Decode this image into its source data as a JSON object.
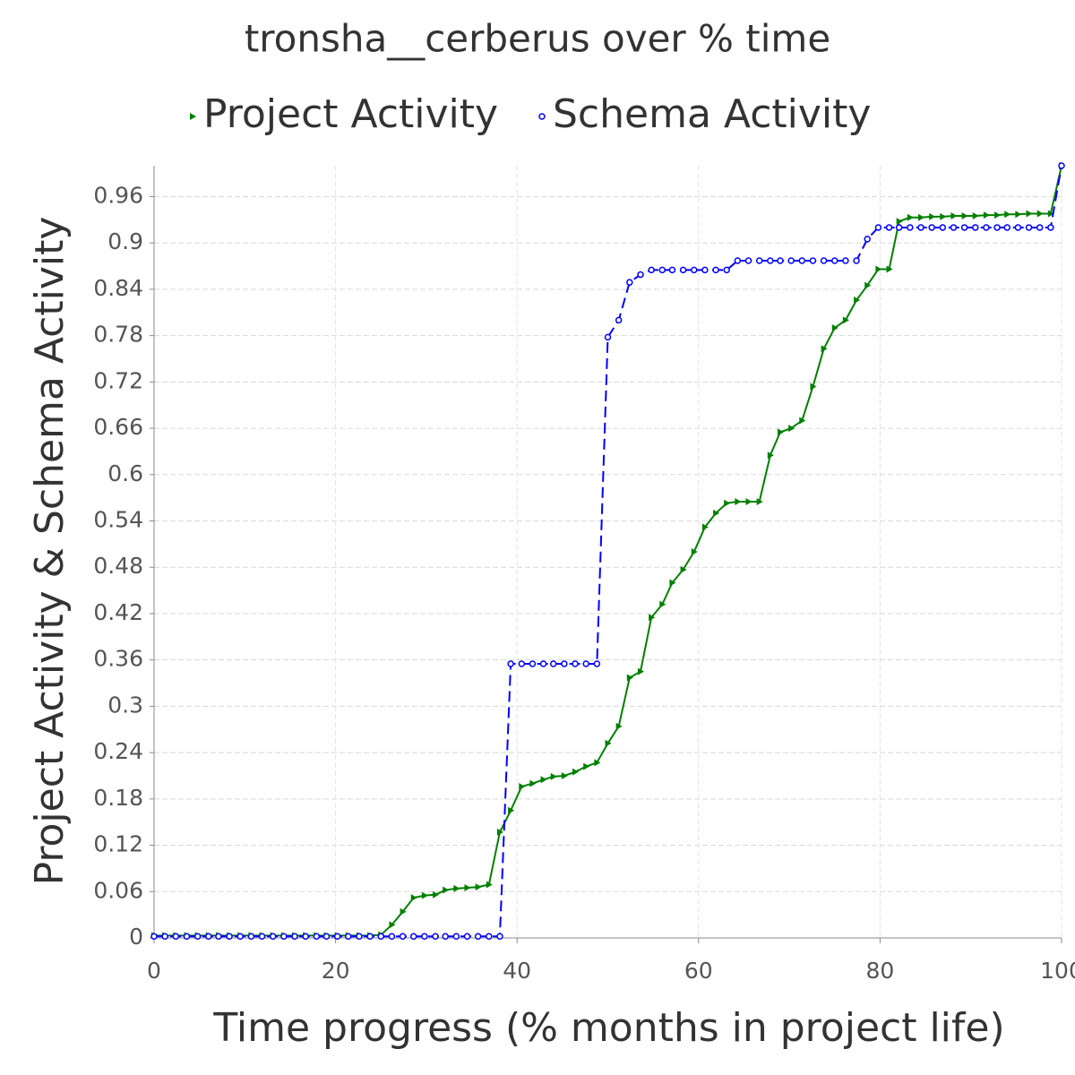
{
  "chart_data": {
    "type": "line",
    "title": "tronsha__cerberus over % time",
    "x_label": "Time progress (% months in project life)",
    "y_label": "Project Activity & Schema Activity",
    "xlim": [
      0,
      100
    ],
    "xticks": [
      0,
      20,
      40,
      60,
      80,
      100
    ],
    "ylim": [
      0,
      1
    ],
    "yticks": [
      0,
      0.06,
      0.12,
      0.18,
      0.24,
      0.3,
      0.36,
      0.42,
      0.48,
      0.54,
      0.6,
      0.66,
      0.72,
      0.78,
      0.84,
      0.9,
      0.96
    ],
    "grid": true,
    "legend": "top",
    "x": [
      0,
      1.2,
      2.4,
      3.6,
      4.8,
      6.0,
      7.1,
      8.3,
      9.5,
      10.7,
      11.9,
      13.1,
      14.3,
      15.5,
      16.7,
      17.9,
      19.0,
      20.2,
      21.4,
      22.6,
      23.8,
      25.0,
      26.2,
      27.4,
      28.6,
      29.8,
      31.0,
      32.1,
      33.3,
      34.5,
      35.7,
      36.9,
      38.1,
      39.3,
      40.5,
      41.7,
      42.9,
      44.0,
      45.2,
      46.4,
      47.6,
      48.8,
      50.0,
      51.2,
      52.4,
      53.6,
      54.8,
      56.0,
      57.1,
      58.3,
      59.5,
      60.7,
      61.9,
      63.1,
      64.3,
      65.5,
      66.7,
      67.9,
      69.0,
      70.2,
      71.4,
      72.6,
      73.8,
      75.0,
      76.2,
      77.4,
      78.6,
      79.8,
      81.0,
      82.1,
      83.3,
      84.5,
      85.7,
      86.9,
      88.1,
      89.3,
      90.5,
      91.7,
      92.9,
      94.0,
      95.2,
      96.4,
      97.6,
      98.8,
      100
    ],
    "series": [
      {
        "name": "Project Activity",
        "color": "#008000",
        "marker": "triangle",
        "dashed": false,
        "values": [
          0.003,
          0.003,
          0.003,
          0.003,
          0.003,
          0.003,
          0.003,
          0.003,
          0.003,
          0.003,
          0.003,
          0.003,
          0.003,
          0.003,
          0.003,
          0.003,
          0.003,
          0.003,
          0.003,
          0.003,
          0.003,
          0.004,
          0.017,
          0.034,
          0.052,
          0.055,
          0.056,
          0.062,
          0.064,
          0.065,
          0.066,
          0.069,
          0.137,
          0.165,
          0.196,
          0.2,
          0.205,
          0.209,
          0.21,
          0.215,
          0.222,
          0.227,
          0.252,
          0.274,
          0.337,
          0.345,
          0.415,
          0.432,
          0.46,
          0.477,
          0.5,
          0.532,
          0.55,
          0.563,
          0.565,
          0.565,
          0.565,
          0.625,
          0.655,
          0.66,
          0.67,
          0.714,
          0.763,
          0.79,
          0.8,
          0.826,
          0.845,
          0.866,
          0.866,
          0.928,
          0.933,
          0.933,
          0.934,
          0.934,
          0.935,
          0.935,
          0.935,
          0.936,
          0.936,
          0.937,
          0.937,
          0.938,
          0.938,
          0.938,
          1.0
        ]
      },
      {
        "name": "Schema Activity",
        "color": "#0000ff",
        "marker": "circle",
        "dashed": true,
        "values": [
          0.002,
          0.002,
          0.002,
          0.002,
          0.002,
          0.002,
          0.002,
          0.002,
          0.002,
          0.002,
          0.002,
          0.002,
          0.002,
          0.002,
          0.002,
          0.002,
          0.002,
          0.002,
          0.002,
          0.002,
          0.002,
          0.002,
          0.002,
          0.002,
          0.002,
          0.002,
          0.002,
          0.002,
          0.002,
          0.002,
          0.002,
          0.002,
          0.002,
          0.355,
          0.355,
          0.355,
          0.355,
          0.355,
          0.355,
          0.355,
          0.355,
          0.355,
          0.778,
          0.8,
          0.849,
          0.859,
          0.865,
          0.865,
          0.865,
          0.865,
          0.865,
          0.865,
          0.865,
          0.865,
          0.877,
          0.877,
          0.877,
          0.877,
          0.877,
          0.877,
          0.877,
          0.877,
          0.877,
          0.877,
          0.877,
          0.877,
          0.905,
          0.92,
          0.92,
          0.92,
          0.92,
          0.92,
          0.92,
          0.92,
          0.92,
          0.92,
          0.92,
          0.92,
          0.92,
          0.92,
          0.92,
          0.92,
          0.92,
          0.92,
          1.0
        ]
      }
    ]
  }
}
